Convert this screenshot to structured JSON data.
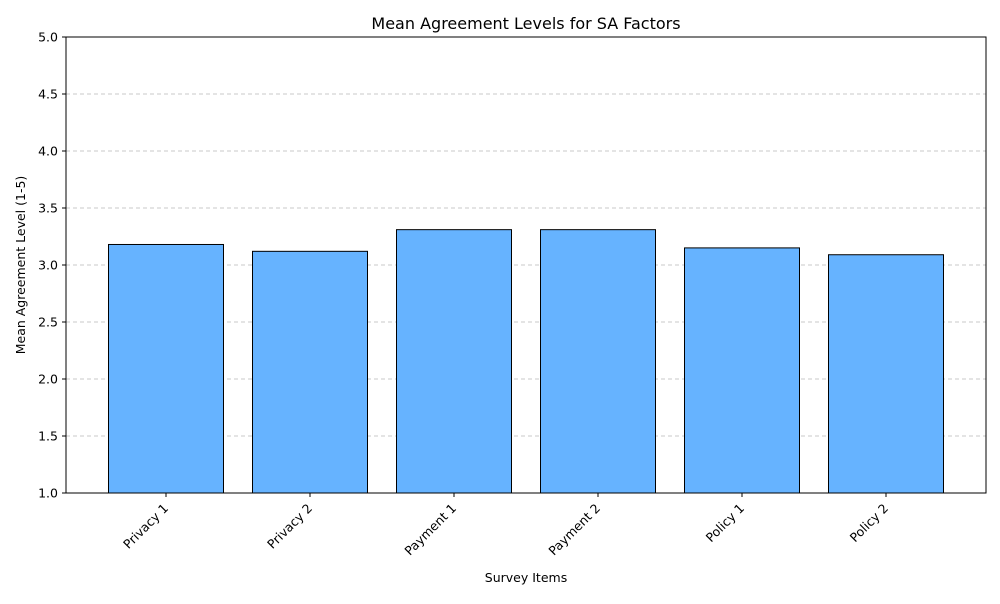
{
  "chart_data": {
    "type": "bar",
    "title": "Mean Agreement Levels for SA Factors",
    "xlabel": "Survey Items",
    "ylabel": "Mean Agreement Level (1-5)",
    "categories": [
      "Privacy 1",
      "Privacy 2",
      "Payment 1",
      "Payment 2",
      "Policy 1",
      "Policy 2"
    ],
    "values": [
      3.18,
      3.12,
      3.31,
      3.31,
      3.15,
      3.09
    ],
    "ylim": [
      1.0,
      5.0
    ],
    "yticks": [
      "1.0",
      "1.5",
      "2.0",
      "2.5",
      "3.0",
      "3.5",
      "4.0",
      "4.5",
      "5.0"
    ],
    "grid": "y-axis dashed",
    "bar_color": "#66b3ff",
    "bar_edge_color": "#000000",
    "grid_color": "#c8c8c8"
  }
}
